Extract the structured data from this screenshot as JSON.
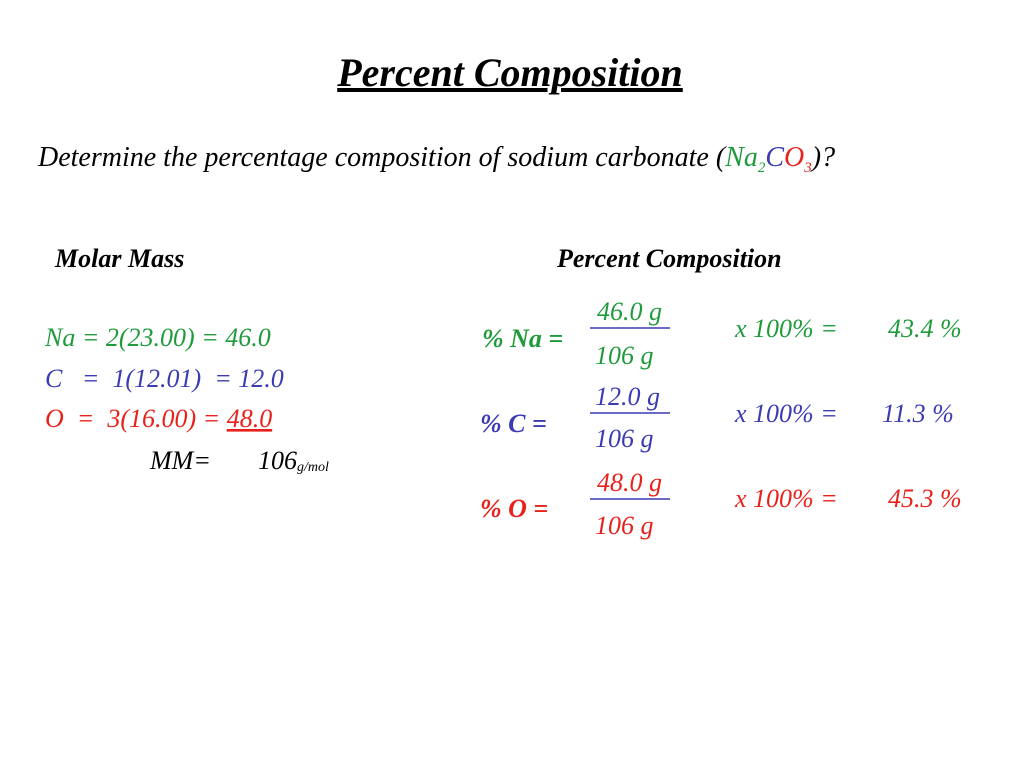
{
  "title": "Percent Composition",
  "question": {
    "text": "Determine the percentage composition of sodium carbonate (",
    "na": "Na",
    "na_sub": "2",
    "c": "C",
    "o": "O",
    "o_sub": "3",
    "end": ")?"
  },
  "molar_mass": {
    "heading": "Molar Mass",
    "na_line": "Na = 2(23.00) = 46.0",
    "c_line": "C   =  1(12.01)  = 12.0",
    "o_line": "O  =  3(16.00) = ",
    "o_total": "48.0",
    "mm_label": "MM=",
    "mm_value": "106",
    "mm_unit": "g/mol"
  },
  "percent_composition": {
    "heading": "Percent Composition",
    "rows": [
      {
        "label": "% Na =",
        "numerator": "46.0 g",
        "denominator": "106 g",
        "multiplier": "x 100% =",
        "result": "43.4 %"
      },
      {
        "label": "% C =",
        "numerator": "12.0 g",
        "denominator": "106 g",
        "multiplier": "x 100% =",
        "result": "11.3 %"
      },
      {
        "label": "% O =",
        "numerator": "48.0 g",
        "denominator": "106 g",
        "multiplier": "x 100% =",
        "result": "45.3 %"
      }
    ]
  }
}
